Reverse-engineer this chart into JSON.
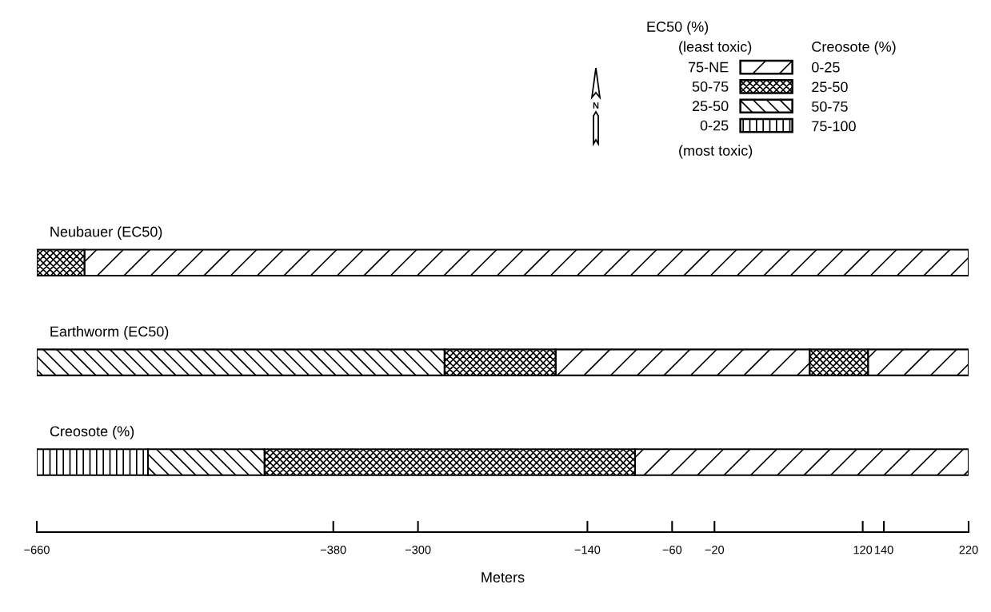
{
  "chart_data": {
    "type": "bar",
    "orientation": "horizontal",
    "xlabel": "Meters",
    "categories": [
      "Neubauer (EC50)",
      "Earthworm (EC50)",
      "Creosote (%)"
    ],
    "series": [
      {
        "name": "75-NE",
        "color": "#000000",
        "base": [
          -615,
          -170,
          -95
        ],
        "values": [
          835,
          240,
          315
        ]
      },
      {
        "color": "#000000",
        "base": [
          null,
          125,
          null
        ],
        "values": [
          null,
          95,
          null
        ]
      },
      {
        "name": "50-75",
        "color": "#000000",
        "base": [
          -660,
          -275,
          -445
        ],
        "values": [
          45,
          105,
          350
        ]
      },
      {
        "color": "#000000",
        "base": [
          null,
          70,
          null
        ],
        "values": [
          null,
          55,
          null
        ]
      },
      {
        "name": "25-50",
        "color": "#000000",
        "base": [
          null,
          -660,
          -555
        ],
        "values": [
          null,
          385,
          110
        ]
      },
      {
        "name": "0-25",
        "color": "#000000",
        "base": [
          null,
          null,
          -660
        ],
        "values": [
          null,
          null,
          105
        ]
      }
    ],
    "xlim": [
      -660,
      220
    ],
    "xticks": [
      {
        "value": -660,
        "label": "−660"
      },
      {
        "value": -380,
        "label": "−380"
      },
      {
        "value": -300,
        "label": "−300"
      },
      {
        "value": -140,
        "label": "−140"
      },
      {
        "value": -60,
        "label": "−60"
      },
      {
        "value": -20,
        "label": "−20"
      },
      120,
      140,
      220
    ],
    "tick_labels": "x",
    "grid": false,
    "legend": "top right",
    "legend_title": "EC50 (%)",
    "annotations": [
      "(least toxic)",
      "Creosote (%)",
      "0-25",
      "25-50",
      "50-75",
      "75-100",
      "(most toxic)",
      "N"
    ]
  }
}
